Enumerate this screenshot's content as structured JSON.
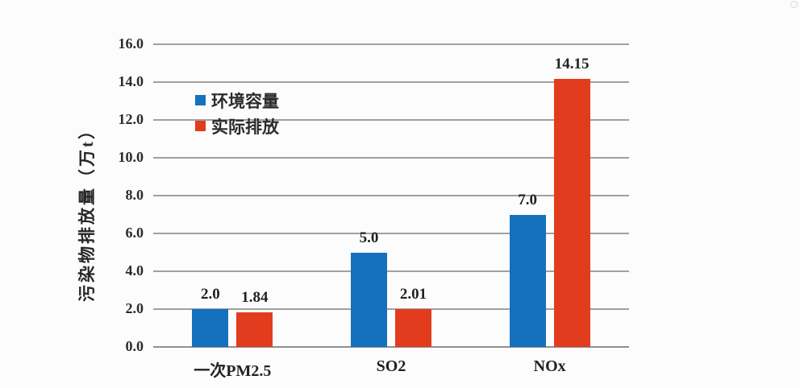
{
  "chart_data": {
    "type": "bar",
    "title": "",
    "categories": [
      "一次PM2.5",
      "SO2",
      "NOx"
    ],
    "series": [
      {
        "name": "环境容量",
        "color": "#1571bd",
        "values": [
          2.0,
          5.0,
          7.0
        ],
        "labels": [
          "2.0",
          "5.0",
          "7.0"
        ]
      },
      {
        "name": "实际排放",
        "color": "#e23c1e",
        "values": [
          1.84,
          2.01,
          14.15
        ],
        "labels": [
          "1.84",
          "2.01",
          "14.15"
        ]
      }
    ],
    "xlabel": "",
    "ylabel": "污染物排放量（万t）",
    "ylim": [
      0,
      16
    ],
    "ytick_step": 2,
    "ytick_labels": [
      "0.0",
      "2.0",
      "4.0",
      "6.0",
      "8.0",
      "10.0",
      "12.0",
      "14.0",
      "16.0"
    ],
    "grid": true,
    "legend_position": "inside-upper-left"
  },
  "colors": {
    "background": "#fcfcfc",
    "gridline": "#a0a0a0",
    "axis_line": "#8f8f8f",
    "text": "#262626",
    "series_blue": "#1571bd",
    "series_red": "#e23c1e"
  }
}
